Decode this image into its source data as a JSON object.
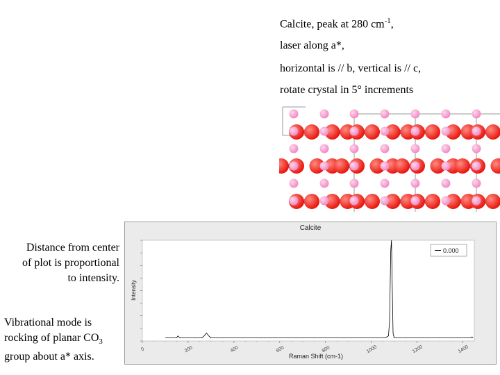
{
  "caption": {
    "line1": {
      "text": "Calcite, peak at 280 cm",
      "sup": "-1",
      "tail": ","
    },
    "line2": "laser along a*,",
    "line3": "horizontal is // b, vertical is // c,",
    "line4": "rotate crystal in 5° increments"
  },
  "left_note_1": {
    "line1": "Distance from center",
    "line2": "of plot is proportional",
    "line3": "to intensity."
  },
  "left_note_2": {
    "line1": "Vibrational mode is",
    "line2": "rocking of planar CO",
    "sub": "3",
    "line3": "group about a* axis."
  },
  "colors": {
    "oxygen": "#e8170f",
    "carbon": "#1a1aa8",
    "calcium": "#f08cc4",
    "trace": "#000000",
    "panel": "#ebebeb"
  },
  "chart_data": {
    "type": "line",
    "title": "Calcite",
    "xlabel": "Raman Shift (cm-1)",
    "ylabel": "Intensity",
    "xlim": [
      0,
      1450
    ],
    "x_ticks": [
      0,
      200,
      400,
      600,
      800,
      1000,
      1200,
      1400
    ],
    "x_tick_labels": [
      "0",
      "200",
      "400",
      "600",
      "800",
      "1000",
      "1200",
      "1400"
    ],
    "legend": {
      "entries": [
        "0.000"
      ],
      "position": "top-right"
    },
    "series": [
      {
        "name": "0.000",
        "x": [
          100,
          150,
          155,
          160,
          165,
          200,
          260,
          270,
          280,
          290,
          300,
          400,
          600,
          800,
          1060,
          1075,
          1080,
          1085,
          1088,
          1095,
          1100,
          1200,
          1400,
          1435,
          1440,
          1445
        ],
        "y": [
          0.01,
          0.01,
          0.03,
          0.02,
          0.01,
          0.01,
          0.01,
          0.03,
          0.06,
          0.03,
          0.01,
          0.01,
          0.01,
          0.01,
          0.01,
          0.03,
          0.18,
          0.9,
          1.0,
          0.06,
          0.01,
          0.01,
          0.01,
          0.01,
          0.02,
          0.01
        ]
      }
    ]
  }
}
